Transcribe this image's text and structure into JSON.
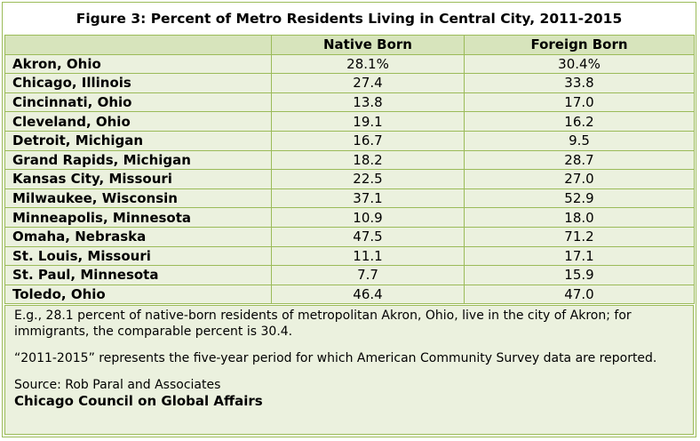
{
  "chart_data": {
    "type": "table",
    "title": "Figure 3: Percent of Metro Residents Living in Central City, 2011-2015",
    "columns": [
      "",
      "Native Born",
      "Foreign Born"
    ],
    "rows": [
      {
        "city": "Akron, Ohio",
        "native": "28.1%",
        "foreign": "30.4%"
      },
      {
        "city": "Chicago, Illinois",
        "native": "27.4",
        "foreign": "33.8"
      },
      {
        "city": "Cincinnati, Ohio",
        "native": "13.8",
        "foreign": "17.0"
      },
      {
        "city": "Cleveland, Ohio",
        "native": "19.1",
        "foreign": "16.2"
      },
      {
        "city": "Detroit, Michigan",
        "native": "16.7",
        "foreign": "9.5"
      },
      {
        "city": "Grand Rapids, Michigan",
        "native": "18.2",
        "foreign": "28.7"
      },
      {
        "city": "Kansas City, Missouri",
        "native": "22.5",
        "foreign": "27.0"
      },
      {
        "city": "Milwaukee, Wisconsin",
        "native": "37.1",
        "foreign": "52.9"
      },
      {
        "city": "Minneapolis, Minnesota",
        "native": "10.9",
        "foreign": "18.0"
      },
      {
        "city": "Omaha, Nebraska",
        "native": "47.5",
        "foreign": "71.2"
      },
      {
        "city": "St. Louis, Missouri",
        "native": "11.1",
        "foreign": "17.1"
      },
      {
        "city": "St. Paul, Minnesota",
        "native": "7.7",
        "foreign": "15.9"
      },
      {
        "city": "Toledo, Ohio",
        "native": "46.4",
        "foreign": "47.0"
      }
    ]
  },
  "notes": {
    "example": "E.g., 28.1 percent of native-born residents of metropolitan Akron, Ohio, live in the city of Akron; for immigrants, the comparable percent is 30.4.",
    "period": "“2011-2015” represents the five-year period for which American Community Survey data are reported.",
    "source": "Source: Rob Paral and Associates",
    "organization": "Chicago Council on Global Affairs"
  },
  "colors": {
    "border": "#9bbb59",
    "header_fill": "#d7e4bc",
    "row_fill": "#ebf1de"
  }
}
